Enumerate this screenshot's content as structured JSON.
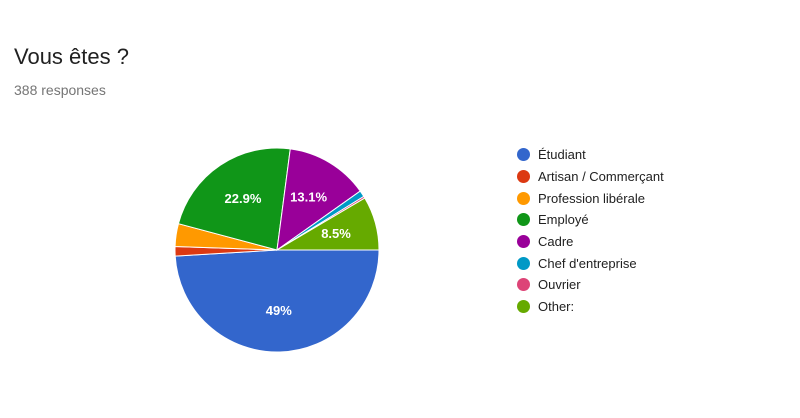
{
  "header": {
    "title": "Vous êtes ?",
    "responses": "388 responses"
  },
  "chart_data": {
    "type": "pie",
    "title": "Vous êtes ?",
    "categories": [
      "Étudiant",
      "Artisan / Commerçant",
      "Profession libérale",
      "Employé",
      "Cadre",
      "Chef d'entreprise",
      "Ouvrier",
      "Other:"
    ],
    "values": [
      49,
      1.5,
      3.6,
      22.9,
      13.1,
      1.0,
      0.3,
      8.5
    ],
    "data_labels": [
      "49%",
      "",
      "",
      "22.9%",
      "13.1%",
      "",
      "",
      "8.5%"
    ],
    "colors": [
      "#3366cc",
      "#dc3912",
      "#ff9900",
      "#109618",
      "#990099",
      "#0099c6",
      "#dd4477",
      "#66aa00"
    ],
    "legend_position": "right"
  }
}
